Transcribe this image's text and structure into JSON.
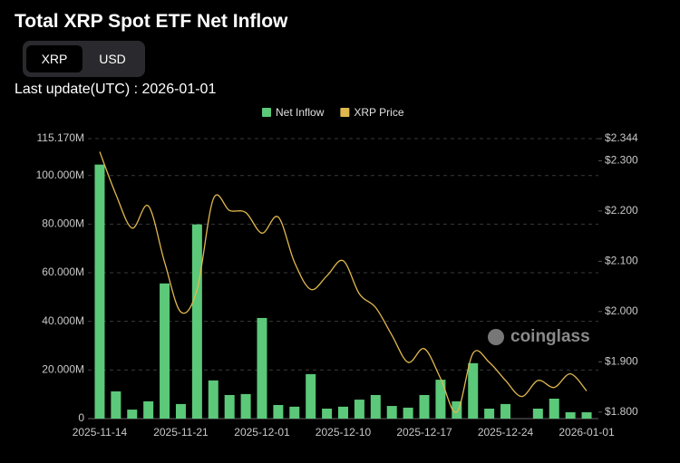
{
  "header": {
    "title": "Total XRP Spot ETF Net Inflow",
    "tabs": [
      "XRP",
      "USD"
    ],
    "last_update": "Last update(UTC) : 2026-01-01"
  },
  "watermark": "coinglass",
  "chart_data": {
    "type": "bar",
    "categories": [
      "2025-11-14",
      null,
      null,
      null,
      null,
      "2025-11-21",
      null,
      null,
      null,
      null,
      "2025-12-01",
      null,
      null,
      null,
      null,
      "2025-12-10",
      null,
      null,
      null,
      null,
      "2025-12-17",
      null,
      null,
      null,
      null,
      "2025-12-24",
      null,
      null,
      null,
      null,
      "2026-01-01"
    ],
    "series": [
      {
        "name": "Net Inflow",
        "type": "bar",
        "color": "#5cc879",
        "values": [
          104.5,
          11.2,
          3.7,
          7.1,
          55.6,
          6.0,
          79.9,
          15.7,
          9.7,
          10.1,
          41.4,
          5.6,
          4.9,
          18.3,
          4.1,
          4.9,
          7.8,
          9.7,
          5.2,
          4.5,
          9.7,
          16.0,
          7.1,
          22.8,
          4.1,
          6.0,
          0,
          4.1,
          8.2,
          2.6,
          2.6
        ]
      },
      {
        "name": "XRP Price",
        "type": "line",
        "axis": "y2",
        "color": "#e0b84e",
        "values": [
          2.318,
          2.233,
          2.166,
          2.21,
          2.098,
          1.999,
          2.044,
          2.224,
          2.201,
          2.197,
          2.156,
          2.188,
          2.098,
          2.044,
          2.071,
          2.101,
          2.035,
          2.008,
          1.953,
          1.899,
          1.926,
          1.867,
          1.8,
          1.917,
          1.899,
          1.863,
          1.831,
          1.863,
          1.849,
          1.876,
          1.842
        ]
      }
    ],
    "ylim": [
      0,
      115.17
    ],
    "yticks": [
      0,
      {
        "value": 20,
        "label": "20.000M"
      },
      {
        "value": 40,
        "label": "40.000M"
      },
      {
        "value": 60,
        "label": "60.000M"
      },
      {
        "value": 80,
        "label": "80.000M"
      },
      {
        "value": 100,
        "label": "100.000M"
      },
      {
        "value": 115.17,
        "label": "115.170M"
      }
    ],
    "y2lim": [
      1.787,
      2.344
    ],
    "y2ticks": [
      {
        "value": 1.8,
        "label": "$1.800"
      },
      {
        "value": 1.9,
        "label": "$1.900"
      },
      {
        "value": 2.0,
        "label": "$2.000"
      },
      {
        "value": 2.1,
        "label": "$2.100"
      },
      {
        "value": 2.2,
        "label": "$2.200"
      },
      {
        "value": 2.3,
        "label": "$2.300"
      },
      {
        "value": 2.344,
        "label": "$2.344"
      }
    ],
    "grid": true,
    "legend": "top"
  }
}
